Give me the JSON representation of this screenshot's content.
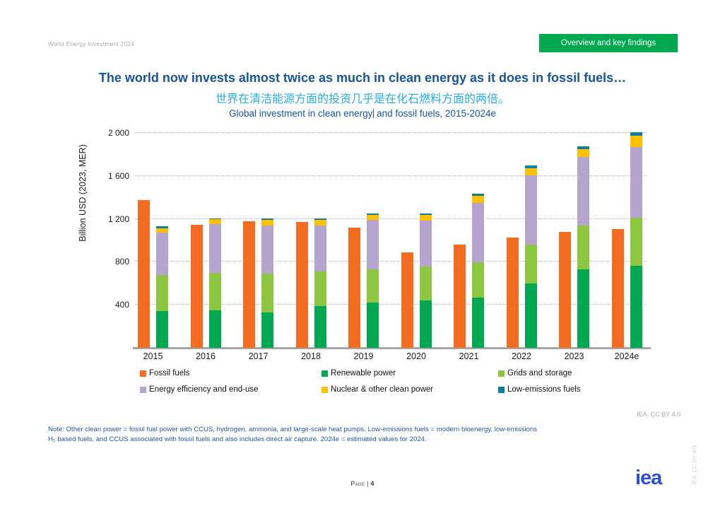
{
  "header": {
    "doc_label": "World Energy Investment 2024",
    "nav_button": "Overview and key findings"
  },
  "title": "The world now invests almost twice as much in clean energy as it does in fossil fuels…",
  "subtitle_zh": "世界在清洁能源方面的投资几乎是在化石燃料方面的两倍。",
  "chart_heading": {
    "before_cursor": "Global investment in clean energy",
    "after_cursor": " and fossil fuels, 2015-2024e"
  },
  "chart_data": {
    "type": "bar",
    "stacked": true,
    "title": "Global investment in clean energy and fossil fuels, 2015-2024e",
    "ylabel": "Billion USD (2023, MER)",
    "ylim": [
      0,
      2000
    ],
    "yticks": [
      {
        "value": 400,
        "label": "400"
      },
      {
        "value": 800,
        "label": "800"
      },
      {
        "value": 1200,
        "label": "1 200"
      },
      {
        "value": 1600,
        "label": "1 600"
      },
      {
        "value": 2000,
        "label": "2 000"
      }
    ],
    "categories": [
      "2015",
      "2016",
      "2017",
      "2018",
      "2019",
      "2020",
      "2021",
      "2022",
      "2023",
      "2024e"
    ],
    "series": [
      {
        "name": "Fossil fuels",
        "color": "#f36c21",
        "stack": "fossil",
        "values": [
          1375,
          1145,
          1180,
          1170,
          1120,
          890,
          958,
          1025,
          1080,
          1105
        ]
      },
      {
        "name": "Renewable power",
        "color": "#00a851",
        "stack": "clean",
        "values": [
          340,
          350,
          330,
          385,
          420,
          440,
          465,
          598,
          728,
          760
        ]
      },
      {
        "name": "Grids and storage",
        "color": "#8dc63f",
        "stack": "clean",
        "values": [
          340,
          350,
          360,
          325,
          310,
          315,
          330,
          360,
          413,
          450
        ]
      },
      {
        "name": "Energy efficiency and end-use",
        "color": "#b5a4ce",
        "stack": "clean",
        "values": [
          390,
          450,
          450,
          430,
          460,
          430,
          555,
          645,
          637,
          660
        ]
      },
      {
        "name": "Nuclear & other clean power",
        "color": "#ffc000",
        "stack": "clean",
        "values": [
          45,
          45,
          50,
          50,
          45,
          50,
          65,
          70,
          73,
          105
        ]
      },
      {
        "name": "Low-emissions fuels",
        "color": "#0b7f9d",
        "stack": "clean",
        "values": [
          15,
          12,
          12,
          15,
          12,
          12,
          18,
          22,
          25,
          30
        ]
      }
    ],
    "grid": "horizontal-dotted",
    "legend_position": "bottom",
    "attribution": "IEA. CC BY 4.0"
  },
  "note": {
    "line1": "Note: Other clean power = fossil fuel power with CCUS, hydrogen, ammonia, and large-scale heat pumps. Low-emissions fuels = modern bioenergy, low-emissions",
    "line2": "H₂ based fuels, and CCUS associated with fossil fuels and also includes direct air capture. 2024e = estimated values for 2024."
  },
  "footer": {
    "page_word": "Page",
    "page_sep": "|",
    "page_number": "4",
    "logo_text": "iea",
    "side_attribution": "IEA. CC BY 4.0"
  },
  "colors": {
    "accent_green": "#00a850",
    "title_blue": "#17549b",
    "subtitle_cyan": "#29abe2",
    "note_blue": "#2057a5",
    "logo_blue": "#2b51d8"
  }
}
